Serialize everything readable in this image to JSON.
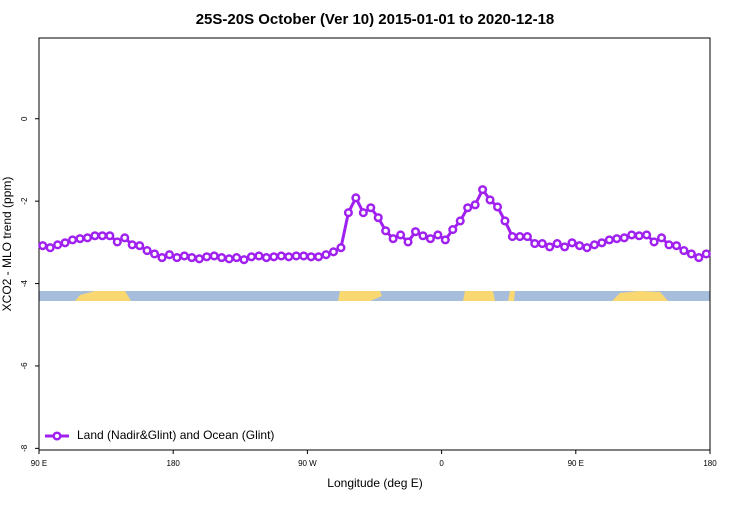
{
  "chart_data": {
    "type": "line",
    "title": "25S-20S October (Ver 10)   2015-01-01 to 2020-12-18",
    "x_label": "Longitude (deg E)",
    "y_label": "XCO2 - MLO trend (ppm)",
    "x": [
      92.5,
      97.5,
      102.5,
      107.5,
      112.5,
      117.5,
      122.5,
      127.5,
      132.5,
      137.5,
      142.5,
      147.5,
      152.5,
      157.5,
      162.5,
      167.5,
      172.5,
      177.5,
      182.5,
      187.5,
      192.5,
      197.5,
      202.5,
      207.5,
      212.5,
      217.5,
      222.5,
      227.5,
      232.5,
      237.5,
      242.5,
      247.5,
      252.5,
      257.5,
      262.5,
      267.5,
      272.5,
      277.5,
      282.5,
      287.5,
      292.5,
      297.5,
      302.5,
      307.5,
      312.5,
      317.5,
      322.5,
      327.5,
      332.5,
      337.5,
      342.5,
      347.5,
      352.5,
      357.5,
      362.5,
      367.5,
      372.5,
      377.5,
      382.5,
      387.5,
      392.5,
      397.5,
      402.5,
      407.5,
      412.5,
      417.5,
      422.5,
      427.5,
      432.5,
      437.5,
      442.5,
      447.5,
      452.5,
      457.5,
      462.5,
      467.5,
      472.5,
      477.5,
      482.5,
      487.5,
      492.5,
      497.5,
      502.5,
      507.5,
      512.5,
      517.5,
      522.5,
      527.5,
      532.5,
      537.5
    ],
    "series": [
      {
        "name": "Land (Nadir&Glint) and Ocean (Glint)",
        "color": "#a020f0",
        "values": [
          -3.08,
          -3.13,
          -3.06,
          -3.01,
          -2.94,
          -2.91,
          -2.89,
          -2.84,
          -2.84,
          -2.84,
          -2.99,
          -2.89,
          -3.06,
          -3.08,
          -3.2,
          -3.28,
          -3.37,
          -3.3,
          -3.37,
          -3.33,
          -3.37,
          -3.4,
          -3.35,
          -3.33,
          -3.37,
          -3.4,
          -3.37,
          -3.42,
          -3.35,
          -3.33,
          -3.37,
          -3.35,
          -3.33,
          -3.35,
          -3.33,
          -3.33,
          -3.35,
          -3.35,
          -3.3,
          -3.23,
          -3.13,
          -2.28,
          -1.92,
          -2.28,
          -2.16,
          -2.4,
          -2.72,
          -2.91,
          -2.82,
          -2.99,
          -2.74,
          -2.84,
          -2.91,
          -2.82,
          -2.94,
          -2.69,
          -2.48,
          -2.16,
          -2.09,
          -1.72,
          -1.97,
          -2.14,
          -2.48,
          -2.86,
          -2.86,
          -2.86,
          -3.03,
          -3.03,
          -3.11,
          -3.03,
          -3.11,
          -3.01,
          -3.08,
          -3.13,
          -3.06,
          -3.01,
          -2.94,
          -2.91,
          -2.89,
          -2.82,
          -2.84,
          -2.82,
          -2.99,
          -2.89,
          -3.06,
          -3.08,
          -3.2,
          -3.28,
          -3.37,
          -3.28
        ]
      }
    ],
    "xlim": [
      90,
      540
    ],
    "xticks": [
      {
        "value": 90,
        "label": "90 E"
      },
      180,
      {
        "value": 270,
        "label": "90 W"
      },
      {
        "value": 360,
        "label": "0"
      },
      {
        "value": 450,
        "label": "90 E"
      },
      {
        "value": 540,
        "label": "180"
      }
    ],
    "ylim": [
      -8.04,
      1.96
    ],
    "yticks": [
      0,
      -2,
      -4,
      -6,
      -8
    ],
    "legend": "lower left"
  }
}
